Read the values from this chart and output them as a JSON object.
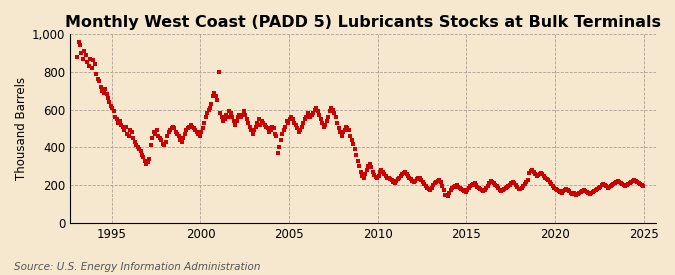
{
  "title": "Monthly West Coast (PADD 5) Lubricants Stocks at Bulk Terminals",
  "ylabel": "Thousand Barrels",
  "source": "Source: U.S. Energy Information Administration",
  "background_color": "#f5e8ce",
  "plot_bg_color": "#f5e8ce",
  "marker_color": "#cc0000",
  "marker": "s",
  "marker_size": 2.8,
  "ylim": [
    0,
    1000
  ],
  "yticks": [
    0,
    200,
    400,
    600,
    800,
    1000
  ],
  "ytick_labels": [
    "0",
    "200",
    "400",
    "600",
    "800",
    "1,000"
  ],
  "xticks": [
    1995,
    2000,
    2005,
    2010,
    2015,
    2020,
    2025
  ],
  "title_fontsize": 11.5,
  "label_fontsize": 8.5,
  "tick_fontsize": 8.5,
  "source_fontsize": 7.5,
  "data": [
    [
      1993,
      1,
      880
    ],
    [
      1993,
      2,
      960
    ],
    [
      1993,
      3,
      940
    ],
    [
      1993,
      4,
      900
    ],
    [
      1993,
      5,
      870
    ],
    [
      1993,
      6,
      910
    ],
    [
      1993,
      7,
      890
    ],
    [
      1993,
      8,
      850
    ],
    [
      1993,
      9,
      830
    ],
    [
      1993,
      10,
      870
    ],
    [
      1993,
      11,
      820
    ],
    [
      1993,
      12,
      860
    ],
    [
      1994,
      1,
      840
    ],
    [
      1994,
      2,
      790
    ],
    [
      1994,
      3,
      760
    ],
    [
      1994,
      4,
      750
    ],
    [
      1994,
      5,
      720
    ],
    [
      1994,
      6,
      700
    ],
    [
      1994,
      7,
      690
    ],
    [
      1994,
      8,
      710
    ],
    [
      1994,
      9,
      680
    ],
    [
      1994,
      10,
      660
    ],
    [
      1994,
      11,
      640
    ],
    [
      1994,
      12,
      620
    ],
    [
      1995,
      1,
      610
    ],
    [
      1995,
      2,
      590
    ],
    [
      1995,
      3,
      560
    ],
    [
      1995,
      4,
      550
    ],
    [
      1995,
      5,
      530
    ],
    [
      1995,
      6,
      540
    ],
    [
      1995,
      7,
      520
    ],
    [
      1995,
      8,
      510
    ],
    [
      1995,
      9,
      490
    ],
    [
      1995,
      10,
      510
    ],
    [
      1995,
      11,
      470
    ],
    [
      1995,
      12,
      460
    ],
    [
      1996,
      1,
      490
    ],
    [
      1996,
      2,
      480
    ],
    [
      1996,
      3,
      450
    ],
    [
      1996,
      4,
      430
    ],
    [
      1996,
      5,
      410
    ],
    [
      1996,
      6,
      400
    ],
    [
      1996,
      7,
      390
    ],
    [
      1996,
      8,
      380
    ],
    [
      1996,
      9,
      360
    ],
    [
      1996,
      10,
      350
    ],
    [
      1996,
      11,
      330
    ],
    [
      1996,
      12,
      310
    ],
    [
      1997,
      1,
      320
    ],
    [
      1997,
      2,
      340
    ],
    [
      1997,
      3,
      410
    ],
    [
      1997,
      4,
      450
    ],
    [
      1997,
      5,
      480
    ],
    [
      1997,
      6,
      470
    ],
    [
      1997,
      7,
      490
    ],
    [
      1997,
      8,
      460
    ],
    [
      1997,
      9,
      450
    ],
    [
      1997,
      10,
      440
    ],
    [
      1997,
      11,
      420
    ],
    [
      1997,
      12,
      410
    ],
    [
      1998,
      1,
      430
    ],
    [
      1998,
      2,
      460
    ],
    [
      1998,
      3,
      480
    ],
    [
      1998,
      4,
      490
    ],
    [
      1998,
      5,
      500
    ],
    [
      1998,
      6,
      510
    ],
    [
      1998,
      7,
      500
    ],
    [
      1998,
      8,
      480
    ],
    [
      1998,
      9,
      470
    ],
    [
      1998,
      10,
      460
    ],
    [
      1998,
      11,
      440
    ],
    [
      1998,
      12,
      430
    ],
    [
      1999,
      1,
      450
    ],
    [
      1999,
      2,
      470
    ],
    [
      1999,
      3,
      490
    ],
    [
      1999,
      4,
      500
    ],
    [
      1999,
      5,
      510
    ],
    [
      1999,
      6,
      520
    ],
    [
      1999,
      7,
      510
    ],
    [
      1999,
      8,
      500
    ],
    [
      1999,
      9,
      490
    ],
    [
      1999,
      10,
      480
    ],
    [
      1999,
      11,
      470
    ],
    [
      1999,
      12,
      460
    ],
    [
      2000,
      1,
      480
    ],
    [
      2000,
      2,
      500
    ],
    [
      2000,
      3,
      530
    ],
    [
      2000,
      4,
      560
    ],
    [
      2000,
      5,
      580
    ],
    [
      2000,
      6,
      600
    ],
    [
      2000,
      7,
      610
    ],
    [
      2000,
      8,
      630
    ],
    [
      2000,
      9,
      670
    ],
    [
      2000,
      10,
      690
    ],
    [
      2000,
      11,
      670
    ],
    [
      2000,
      12,
      650
    ],
    [
      2001,
      1,
      800
    ],
    [
      2001,
      2,
      580
    ],
    [
      2001,
      3,
      560
    ],
    [
      2001,
      4,
      540
    ],
    [
      2001,
      5,
      550
    ],
    [
      2001,
      6,
      570
    ],
    [
      2001,
      7,
      560
    ],
    [
      2001,
      8,
      590
    ],
    [
      2001,
      9,
      580
    ],
    [
      2001,
      10,
      560
    ],
    [
      2001,
      11,
      540
    ],
    [
      2001,
      12,
      520
    ],
    [
      2002,
      1,
      540
    ],
    [
      2002,
      2,
      560
    ],
    [
      2002,
      3,
      570
    ],
    [
      2002,
      4,
      560
    ],
    [
      2002,
      5,
      570
    ],
    [
      2002,
      6,
      590
    ],
    [
      2002,
      7,
      570
    ],
    [
      2002,
      8,
      550
    ],
    [
      2002,
      9,
      530
    ],
    [
      2002,
      10,
      510
    ],
    [
      2002,
      11,
      490
    ],
    [
      2002,
      12,
      470
    ],
    [
      2003,
      1,
      490
    ],
    [
      2003,
      2,
      510
    ],
    [
      2003,
      3,
      530
    ],
    [
      2003,
      4,
      550
    ],
    [
      2003,
      5,
      520
    ],
    [
      2003,
      6,
      540
    ],
    [
      2003,
      7,
      530
    ],
    [
      2003,
      8,
      520
    ],
    [
      2003,
      9,
      510
    ],
    [
      2003,
      10,
      500
    ],
    [
      2003,
      11,
      480
    ],
    [
      2003,
      12,
      490
    ],
    [
      2004,
      1,
      510
    ],
    [
      2004,
      2,
      500
    ],
    [
      2004,
      3,
      470
    ],
    [
      2004,
      4,
      460
    ],
    [
      2004,
      5,
      370
    ],
    [
      2004,
      6,
      400
    ],
    [
      2004,
      7,
      440
    ],
    [
      2004,
      8,
      470
    ],
    [
      2004,
      9,
      490
    ],
    [
      2004,
      10,
      510
    ],
    [
      2004,
      11,
      540
    ],
    [
      2004,
      12,
      530
    ],
    [
      2005,
      1,
      550
    ],
    [
      2005,
      2,
      560
    ],
    [
      2005,
      3,
      550
    ],
    [
      2005,
      4,
      530
    ],
    [
      2005,
      5,
      520
    ],
    [
      2005,
      6,
      500
    ],
    [
      2005,
      7,
      480
    ],
    [
      2005,
      8,
      490
    ],
    [
      2005,
      9,
      510
    ],
    [
      2005,
      10,
      530
    ],
    [
      2005,
      11,
      550
    ],
    [
      2005,
      12,
      560
    ],
    [
      2006,
      1,
      580
    ],
    [
      2006,
      2,
      570
    ],
    [
      2006,
      3,
      560
    ],
    [
      2006,
      4,
      570
    ],
    [
      2006,
      5,
      580
    ],
    [
      2006,
      6,
      600
    ],
    [
      2006,
      7,
      610
    ],
    [
      2006,
      8,
      590
    ],
    [
      2006,
      9,
      570
    ],
    [
      2006,
      10,
      550
    ],
    [
      2006,
      11,
      530
    ],
    [
      2006,
      12,
      510
    ],
    [
      2007,
      1,
      520
    ],
    [
      2007,
      2,
      540
    ],
    [
      2007,
      3,
      560
    ],
    [
      2007,
      4,
      590
    ],
    [
      2007,
      5,
      610
    ],
    [
      2007,
      6,
      600
    ],
    [
      2007,
      7,
      580
    ],
    [
      2007,
      8,
      560
    ],
    [
      2007,
      9,
      530
    ],
    [
      2007,
      10,
      500
    ],
    [
      2007,
      11,
      480
    ],
    [
      2007,
      12,
      460
    ],
    [
      2008,
      1,
      480
    ],
    [
      2008,
      2,
      490
    ],
    [
      2008,
      3,
      510
    ],
    [
      2008,
      4,
      500
    ],
    [
      2008,
      5,
      490
    ],
    [
      2008,
      6,
      460
    ],
    [
      2008,
      7,
      440
    ],
    [
      2008,
      8,
      420
    ],
    [
      2008,
      9,
      390
    ],
    [
      2008,
      10,
      360
    ],
    [
      2008,
      11,
      330
    ],
    [
      2008,
      12,
      300
    ],
    [
      2009,
      1,
      270
    ],
    [
      2009,
      2,
      250
    ],
    [
      2009,
      3,
      240
    ],
    [
      2009,
      4,
      260
    ],
    [
      2009,
      5,
      280
    ],
    [
      2009,
      6,
      300
    ],
    [
      2009,
      7,
      310
    ],
    [
      2009,
      8,
      295
    ],
    [
      2009,
      9,
      270
    ],
    [
      2009,
      10,
      255
    ],
    [
      2009,
      11,
      245
    ],
    [
      2009,
      12,
      235
    ],
    [
      2010,
      1,
      250
    ],
    [
      2010,
      2,
      270
    ],
    [
      2010,
      3,
      280
    ],
    [
      2010,
      4,
      270
    ],
    [
      2010,
      5,
      260
    ],
    [
      2010,
      6,
      250
    ],
    [
      2010,
      7,
      240
    ],
    [
      2010,
      8,
      235
    ],
    [
      2010,
      9,
      230
    ],
    [
      2010,
      10,
      225
    ],
    [
      2010,
      11,
      215
    ],
    [
      2010,
      12,
      210
    ],
    [
      2011,
      1,
      220
    ],
    [
      2011,
      2,
      230
    ],
    [
      2011,
      3,
      240
    ],
    [
      2011,
      4,
      250
    ],
    [
      2011,
      5,
      260
    ],
    [
      2011,
      6,
      265
    ],
    [
      2011,
      7,
      270
    ],
    [
      2011,
      8,
      260
    ],
    [
      2011,
      9,
      250
    ],
    [
      2011,
      10,
      240
    ],
    [
      2011,
      11,
      230
    ],
    [
      2011,
      12,
      220
    ],
    [
      2012,
      1,
      215
    ],
    [
      2012,
      2,
      220
    ],
    [
      2012,
      3,
      230
    ],
    [
      2012,
      4,
      240
    ],
    [
      2012,
      5,
      235
    ],
    [
      2012,
      6,
      225
    ],
    [
      2012,
      7,
      215
    ],
    [
      2012,
      8,
      205
    ],
    [
      2012,
      9,
      195
    ],
    [
      2012,
      10,
      185
    ],
    [
      2012,
      11,
      180
    ],
    [
      2012,
      12,
      175
    ],
    [
      2013,
      1,
      185
    ],
    [
      2013,
      2,
      200
    ],
    [
      2013,
      3,
      210
    ],
    [
      2013,
      4,
      215
    ],
    [
      2013,
      5,
      220
    ],
    [
      2013,
      6,
      225
    ],
    [
      2013,
      7,
      215
    ],
    [
      2013,
      8,
      195
    ],
    [
      2013,
      9,
      175
    ],
    [
      2013,
      10,
      150
    ],
    [
      2013,
      11,
      145
    ],
    [
      2013,
      12,
      140
    ],
    [
      2014,
      1,
      160
    ],
    [
      2014,
      2,
      175
    ],
    [
      2014,
      3,
      185
    ],
    [
      2014,
      4,
      190
    ],
    [
      2014,
      5,
      195
    ],
    [
      2014,
      6,
      200
    ],
    [
      2014,
      7,
      190
    ],
    [
      2014,
      8,
      185
    ],
    [
      2014,
      9,
      180
    ],
    [
      2014,
      10,
      175
    ],
    [
      2014,
      11,
      170
    ],
    [
      2014,
      12,
      165
    ],
    [
      2015,
      1,
      175
    ],
    [
      2015,
      2,
      185
    ],
    [
      2015,
      3,
      195
    ],
    [
      2015,
      4,
      200
    ],
    [
      2015,
      5,
      205
    ],
    [
      2015,
      6,
      210
    ],
    [
      2015,
      7,
      200
    ],
    [
      2015,
      8,
      190
    ],
    [
      2015,
      9,
      185
    ],
    [
      2015,
      10,
      180
    ],
    [
      2015,
      11,
      175
    ],
    [
      2015,
      12,
      170
    ],
    [
      2016,
      1,
      175
    ],
    [
      2016,
      2,
      185
    ],
    [
      2016,
      3,
      195
    ],
    [
      2016,
      4,
      210
    ],
    [
      2016,
      5,
      220
    ],
    [
      2016,
      6,
      215
    ],
    [
      2016,
      7,
      210
    ],
    [
      2016,
      8,
      200
    ],
    [
      2016,
      9,
      195
    ],
    [
      2016,
      10,
      185
    ],
    [
      2016,
      11,
      175
    ],
    [
      2016,
      12,
      170
    ],
    [
      2017,
      1,
      175
    ],
    [
      2017,
      2,
      180
    ],
    [
      2017,
      3,
      185
    ],
    [
      2017,
      4,
      190
    ],
    [
      2017,
      5,
      195
    ],
    [
      2017,
      6,
      200
    ],
    [
      2017,
      7,
      210
    ],
    [
      2017,
      8,
      215
    ],
    [
      2017,
      9,
      210
    ],
    [
      2017,
      10,
      200
    ],
    [
      2017,
      11,
      190
    ],
    [
      2017,
      12,
      180
    ],
    [
      2018,
      1,
      180
    ],
    [
      2018,
      2,
      185
    ],
    [
      2018,
      3,
      195
    ],
    [
      2018,
      4,
      205
    ],
    [
      2018,
      5,
      215
    ],
    [
      2018,
      6,
      225
    ],
    [
      2018,
      7,
      265
    ],
    [
      2018,
      8,
      275
    ],
    [
      2018,
      9,
      280
    ],
    [
      2018,
      10,
      270
    ],
    [
      2018,
      11,
      260
    ],
    [
      2018,
      12,
      250
    ],
    [
      2019,
      1,
      255
    ],
    [
      2019,
      2,
      260
    ],
    [
      2019,
      3,
      265
    ],
    [
      2019,
      4,
      260
    ],
    [
      2019,
      5,
      250
    ],
    [
      2019,
      6,
      240
    ],
    [
      2019,
      7,
      230
    ],
    [
      2019,
      8,
      225
    ],
    [
      2019,
      9,
      215
    ],
    [
      2019,
      10,
      205
    ],
    [
      2019,
      11,
      195
    ],
    [
      2019,
      12,
      185
    ],
    [
      2020,
      1,
      180
    ],
    [
      2020,
      2,
      175
    ],
    [
      2020,
      3,
      170
    ],
    [
      2020,
      4,
      165
    ],
    [
      2020,
      5,
      160
    ],
    [
      2020,
      6,
      170
    ],
    [
      2020,
      7,
      175
    ],
    [
      2020,
      8,
      180
    ],
    [
      2020,
      9,
      175
    ],
    [
      2020,
      10,
      170
    ],
    [
      2020,
      11,
      160
    ],
    [
      2020,
      12,
      155
    ],
    [
      2021,
      1,
      160
    ],
    [
      2021,
      2,
      155
    ],
    [
      2021,
      3,
      150
    ],
    [
      2021,
      4,
      155
    ],
    [
      2021,
      5,
      160
    ],
    [
      2021,
      6,
      165
    ],
    [
      2021,
      7,
      170
    ],
    [
      2021,
      8,
      175
    ],
    [
      2021,
      9,
      170
    ],
    [
      2021,
      10,
      165
    ],
    [
      2021,
      11,
      160
    ],
    [
      2021,
      12,
      155
    ],
    [
      2022,
      1,
      160
    ],
    [
      2022,
      2,
      165
    ],
    [
      2022,
      3,
      170
    ],
    [
      2022,
      4,
      175
    ],
    [
      2022,
      5,
      180
    ],
    [
      2022,
      6,
      185
    ],
    [
      2022,
      7,
      190
    ],
    [
      2022,
      8,
      200
    ],
    [
      2022,
      9,
      205
    ],
    [
      2022,
      10,
      200
    ],
    [
      2022,
      11,
      195
    ],
    [
      2022,
      12,
      185
    ],
    [
      2023,
      1,
      190
    ],
    [
      2023,
      2,
      195
    ],
    [
      2023,
      3,
      200
    ],
    [
      2023,
      4,
      205
    ],
    [
      2023,
      5,
      210
    ],
    [
      2023,
      6,
      215
    ],
    [
      2023,
      7,
      220
    ],
    [
      2023,
      8,
      215
    ],
    [
      2023,
      9,
      210
    ],
    [
      2023,
      10,
      205
    ],
    [
      2023,
      11,
      200
    ],
    [
      2023,
      12,
      195
    ],
    [
      2024,
      1,
      200
    ],
    [
      2024,
      2,
      205
    ],
    [
      2024,
      3,
      210
    ],
    [
      2024,
      4,
      215
    ],
    [
      2024,
      5,
      220
    ],
    [
      2024,
      6,
      225
    ],
    [
      2024,
      7,
      220
    ],
    [
      2024,
      8,
      215
    ],
    [
      2024,
      9,
      210
    ],
    [
      2024,
      10,
      205
    ],
    [
      2024,
      11,
      200
    ],
    [
      2024,
      12,
      195
    ]
  ]
}
